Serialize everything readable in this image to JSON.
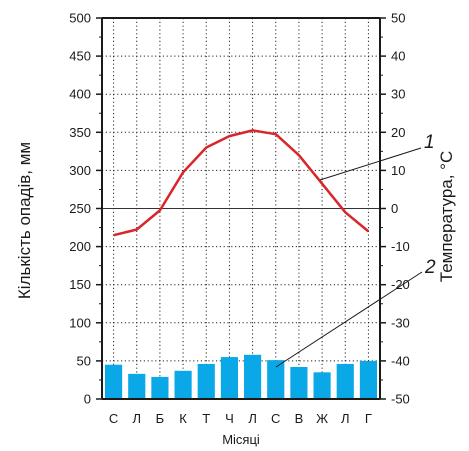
{
  "chart_data": {
    "type": "bar+line",
    "categories": [
      "С",
      "Л",
      "Б",
      "К",
      "Т",
      "Ч",
      "Л",
      "С",
      "В",
      "Ж",
      "Л",
      "Г"
    ],
    "xlabel": "Місяці",
    "ylabel_left": "Кількість опадів, мм",
    "ylabel_right": "Температура, °С",
    "ylim_left": [
      0,
      500
    ],
    "ylim_right": [
      -50,
      50
    ],
    "yticks_left": [
      "0",
      "50",
      "100",
      "150",
      "200",
      "250",
      "300",
      "350",
      "400",
      "450",
      "500"
    ],
    "yticks_right": [
      "-50",
      "-40",
      "-30",
      "-20",
      "-10",
      "0",
      "10",
      "20",
      "30",
      "40",
      "50"
    ],
    "grid": "dotted vertical and horizontal",
    "series": [
      {
        "label": "2",
        "type": "bar",
        "axis": "left",
        "color": "#0aa8e6",
        "values": [
          45,
          33,
          29,
          37,
          46,
          55,
          58,
          51,
          42,
          35,
          46,
          50
        ]
      },
      {
        "label": "1",
        "type": "line",
        "axis": "right",
        "color": "#d9262a",
        "values": [
          -7,
          -5.5,
          -0.5,
          9.5,
          16,
          19,
          20.5,
          19.5,
          14,
          6.5,
          -1,
          -6
        ]
      }
    ],
    "annotations": [
      "1",
      "2"
    ]
  }
}
